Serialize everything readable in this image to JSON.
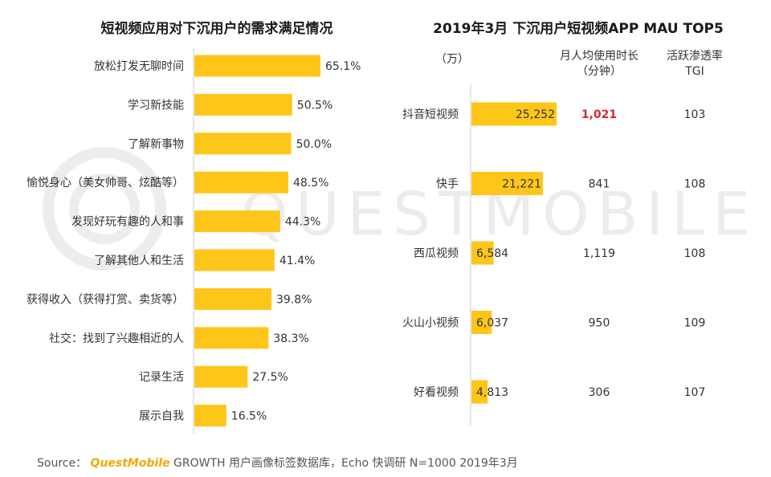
{
  "watermark": "QUESTMOBILE",
  "charts": [
    {
      "type": "bar",
      "orientation": "horizontal",
      "title": "短视频应用对下沉用户的需求满足情况",
      "categories": [
        "放松打发无聊时间",
        "学习新技能",
        "了解新事物",
        "愉悦身心（美女帅哥、炫酷等）",
        "发现好玩有趣的人和事",
        "了解其他人和生活",
        "获得收入（获得打赏、卖货等）",
        "社交：找到了兴趣相近的人",
        "记录生活",
        "展示自我"
      ],
      "values": [
        65.1,
        50.5,
        50.0,
        48.5,
        44.3,
        41.4,
        39.8,
        38.3,
        27.5,
        16.5
      ],
      "value_labels": [
        "65.1%",
        "50.5%",
        "50.0%",
        "48.5%",
        "44.3%",
        "41.4%",
        "39.8%",
        "38.3%",
        "27.5%",
        "16.5%"
      ],
      "unit": "%",
      "bar_color": "#FFC61A"
    },
    {
      "type": "bar",
      "orientation": "horizontal",
      "title": "2019年3月 下沉用户短视频APP MAU TOP5",
      "unit_label": "（万）",
      "categories": [
        "抖音短视频",
        "快手",
        "西瓜视频",
        "火山小视频",
        "好看视频"
      ],
      "values": [
        25252,
        21221,
        6584,
        6037,
        4813
      ],
      "value_labels": [
        "25,252",
        "21,221",
        "6,584",
        "6,037",
        "4,813"
      ],
      "bar_color": "#FFC61A",
      "table": {
        "columns": [
          {
            "header_lines": [
              "月人均使用时长",
              "（分钟）"
            ],
            "values": [
              "1,021",
              "841",
              "1,119",
              "950",
              "306"
            ],
            "highlight_index": 0,
            "highlight_color": "#D12B2B"
          },
          {
            "header_lines": [
              "活跃渗透率",
              "TGI"
            ],
            "values": [
              "103",
              "108",
              "108",
              "109",
              "107"
            ]
          }
        ]
      }
    }
  ],
  "source": {
    "prefix": "Source：",
    "brand": "QuestMobile",
    "rest": " GROWTH 用户画像标签数据库，Echo 快调研 N=1000 2019年3月"
  }
}
